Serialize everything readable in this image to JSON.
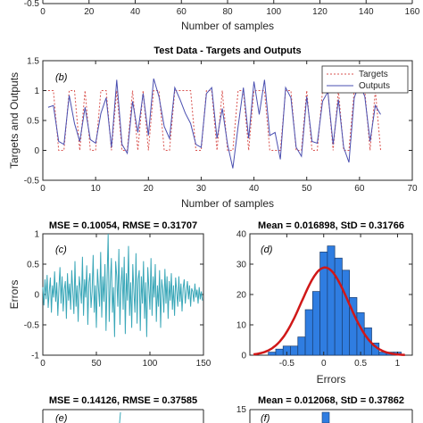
{
  "chart_data": [
    {
      "panel": "top-partial",
      "type": "line",
      "xlabel": "Number of samples",
      "x_ticks": [
        "0",
        "20",
        "40",
        "60",
        "80",
        "100",
        "120",
        "140",
        "160"
      ],
      "y_ticks": [
        "-0.5"
      ]
    },
    {
      "panel": "(b)",
      "type": "line",
      "title": "Test Data - Targets and Outputs",
      "xlabel": "Number of samples",
      "ylabel": "Targets and Outputs",
      "xlim": [
        0,
        70
      ],
      "ylim": [
        -0.5,
        1.5
      ],
      "x_ticks": [
        "0",
        "10",
        "20",
        "30",
        "40",
        "50",
        "60",
        "70"
      ],
      "y_ticks": [
        "-0.5",
        "0",
        "0.5",
        "1",
        "1.5"
      ],
      "legend": [
        "Targets",
        "Outputs"
      ],
      "legend_placement": "top-right",
      "series": [
        {
          "name": "Targets",
          "color": "#d9534f",
          "style": "dotted",
          "y": [
            1,
            1,
            0,
            0,
            1,
            1,
            0,
            1,
            0,
            0,
            1,
            1,
            0,
            1,
            0,
            0,
            1,
            0,
            1,
            0,
            1,
            1,
            0,
            0,
            1,
            1,
            1,
            1,
            0,
            0,
            1,
            1,
            0,
            1,
            0,
            0,
            1,
            1,
            0,
            1,
            1,
            1,
            0,
            0,
            0,
            1,
            1,
            0,
            0,
            1,
            0,
            0,
            1,
            1,
            0,
            1,
            0,
            0,
            1,
            1,
            1,
            0,
            1,
            0
          ]
        },
        {
          "name": "Outputs",
          "color": "#4a4fb0",
          "style": "solid",
          "y": [
            0.72,
            0.75,
            0.15,
            0.1,
            0.92,
            0.45,
            0.15,
            0.72,
            0.18,
            0.12,
            0.62,
            0.88,
            0.05,
            1.18,
            0.1,
            -0.05,
            0.82,
            0.3,
            0.95,
            0.25,
            1.2,
            0.9,
            0.4,
            0.2,
            1.05,
            0.85,
            0.62,
            0.45,
            0.1,
            0.05,
            0.95,
            1.05,
            0.2,
            0.7,
            0.1,
            -0.3,
            0.4,
            1.05,
            0.2,
            1.15,
            0.6,
            1.18,
            0.25,
            0.3,
            -0.15,
            1.05,
            0.88,
            0.05,
            -0.1,
            0.9,
            0.15,
            0.12,
            0.82,
            0.98,
            0.1,
            0.85,
            0.05,
            -0.2,
            0.88,
            1.12,
            0.9,
            0.15,
            0.75,
            0.6
          ]
        }
      ]
    },
    {
      "panel": "(c)",
      "type": "line",
      "title": "MSE = 0.10054, RMSE = 0.31707",
      "ylabel": "Errors",
      "xlim": [
        0,
        150
      ],
      "ylim": [
        -1,
        1
      ],
      "x_ticks": [
        "0",
        "50",
        "100",
        "150"
      ],
      "y_ticks": [
        "-1",
        "-0.5",
        "0",
        "0.5",
        "1"
      ],
      "series": [
        {
          "name": "",
          "color": "#3aa7b8",
          "y": [
            0.12,
            -0.18,
            0.25,
            -0.08,
            0.32,
            -0.22,
            0.05,
            0.28,
            -0.3,
            0.15,
            -0.05,
            0.38,
            -0.12,
            0.2,
            -0.35,
            0.1,
            0.45,
            -0.15,
            0.3,
            -0.28,
            0.08,
            0.22,
            -0.4,
            0.35,
            -0.1,
            0.18,
            -0.25,
            0.4,
            0.05,
            -0.32,
            0.55,
            -0.2,
            0.15,
            -0.45,
            0.3,
            0.1,
            -0.15,
            0.62,
            -0.35,
            0.25,
            -0.05,
            0.48,
            -0.5,
            0.2,
            0.35,
            -0.22,
            0.05,
            0.65,
            -0.3,
            0.15,
            -0.55,
            0.42,
            0.1,
            -0.2,
            0.7,
            -0.38,
            0.3,
            -0.12,
            0.5,
            -0.6,
            0.25,
            1.0,
            -0.45,
            0.2,
            0.6,
            -0.3,
            0.12,
            -0.7,
            0.55,
            0.3,
            -0.2,
            0.75,
            -0.5,
            0.15,
            0.45,
            -0.25,
            0.62,
            -0.65,
            0.35,
            -0.1,
            0.8,
            -0.35,
            0.2,
            -0.55,
            0.5,
            0.05,
            -0.3,
            0.68,
            -0.48,
            0.25,
            0.4,
            -0.6,
            0.3,
            -0.15,
            0.55,
            -0.4,
            0.2,
            -0.7,
            0.45,
            0.1,
            -0.25,
            0.6,
            -0.35,
            0.3,
            -0.05,
            0.5,
            -0.45,
            0.15,
            -0.2,
            0.4,
            -0.55,
            0.25,
            0.08,
            -0.3,
            0.42,
            -0.15,
            0.3,
            -0.4,
            0.22,
            -0.1,
            0.35,
            -0.25,
            0.15,
            -0.35,
            0.28,
            0.05,
            -0.2,
            0.3,
            -0.12,
            0.18,
            -0.28,
            0.1,
            0.25,
            -0.15,
            0.05,
            0.22,
            -0.08,
            0.15,
            -0.2,
            0.1,
            0.05,
            -0.12,
            0.18,
            -0.05,
            0.08,
            -0.15,
            0.12,
            -0.08,
            0.05,
            -0.1
          ]
        }
      ]
    },
    {
      "panel": "(d)",
      "type": "bar",
      "title": "Mean = 0.016898, StD = 0.31766",
      "xlabel": "Errors",
      "xlim": [
        -1,
        1.2
      ],
      "ylim": [
        0,
        40
      ],
      "x_ticks": [
        "-0.5",
        "0",
        "0.5",
        "1"
      ],
      "y_ticks": [
        "0",
        "10",
        "20",
        "30",
        "40"
      ],
      "bin_width": 0.1,
      "bins": [
        -0.9,
        -0.8,
        -0.7,
        -0.6,
        -0.5,
        -0.4,
        -0.3,
        -0.2,
        -0.1,
        0.0,
        0.1,
        0.2,
        0.3,
        0.4,
        0.5,
        0.6,
        0.7,
        0.8,
        0.9,
        1.0
      ],
      "values": [
        0,
        0,
        1,
        2,
        3,
        3,
        6,
        15,
        21,
        34,
        36,
        32,
        28,
        19,
        14,
        9,
        4,
        1,
        1,
        1
      ],
      "bar_color": "#2f7de1",
      "fit": {
        "name": "normal fit",
        "color": "#d01818",
        "mean": 0.016898,
        "std": 0.31766
      }
    },
    {
      "panel": "(e)",
      "type": "line",
      "title": "MSE = 0.14126, RMSE = 0.37585"
    },
    {
      "panel": "(f)",
      "type": "bar",
      "title": "Mean = 0.012068, StD = 0.37862",
      "y_ticks": [
        "15"
      ]
    }
  ]
}
